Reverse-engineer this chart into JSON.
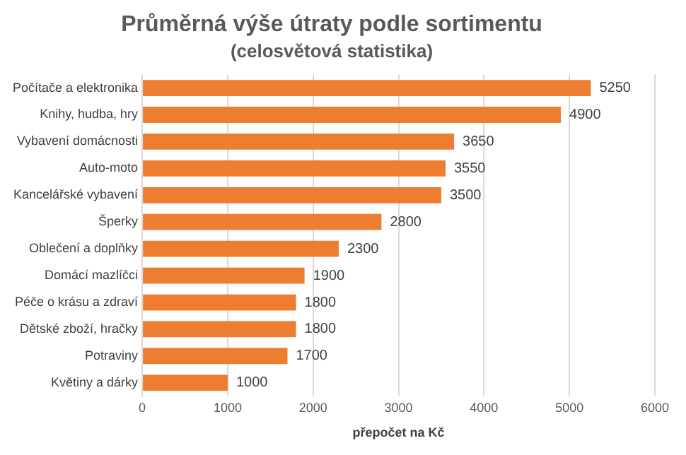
{
  "chart_data": {
    "type": "bar",
    "orientation": "horizontal",
    "title": "Průměrná výše útraty podle sortimentu",
    "subtitle": "(celosvětová statistika)",
    "xlabel": "přepočet na Kč",
    "categories": [
      "Počítače a elektronika",
      "Knihy, hudba, hry",
      "Vybavení domácnosti",
      "Auto-moto",
      "Kancelářské vybavení",
      "Šperky",
      "Oblečení a doplňky",
      "Domácí mazlíčci",
      "Péče o krásu a zdraví",
      "Dětské zboží, hračky",
      "Potraviny",
      "Květiny a dárky"
    ],
    "values": [
      5250,
      4900,
      3650,
      3550,
      3500,
      2800,
      2300,
      1900,
      1800,
      1800,
      1700,
      1000
    ],
    "color": "#ed7d31",
    "xlim": [
      0,
      6000
    ],
    "xticks": [
      0,
      1000,
      2000,
      3000,
      4000,
      5000,
      6000
    ],
    "grid": "x",
    "data_labels": true,
    "legend": false
  }
}
